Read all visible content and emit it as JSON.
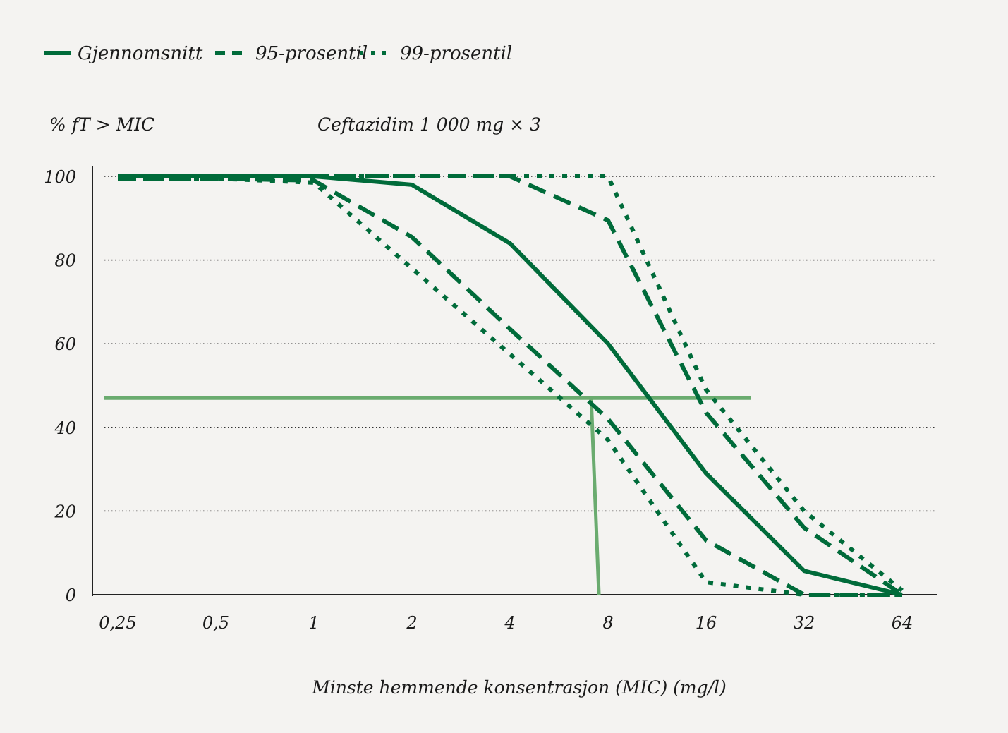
{
  "chart_data": {
    "type": "line",
    "title": "Ceftazidim 1 000 mg × 3",
    "ylabel": "% fT > MIC",
    "xlabel": "Minste hemmende konsentrasjon (MIC) (mg/l)",
    "x_scale": "log2",
    "categories": [
      "0,25",
      "0,5",
      "1",
      "2",
      "4",
      "8",
      "16",
      "32",
      "64"
    ],
    "x": [
      0.25,
      0.5,
      1,
      2,
      4,
      8,
      16,
      32,
      64
    ],
    "ylim": [
      0,
      100
    ],
    "yticks": [
      "0",
      "20",
      "40",
      "60",
      "80",
      "100"
    ],
    "grid": "horizontal dotted",
    "legend_position": "top-left",
    "colors": {
      "series": "#006b3a",
      "reference": "#6aab6f",
      "background": "#f4f3f1"
    },
    "legend": [
      {
        "name": "Gjennomsnitt",
        "style": "solid"
      },
      {
        "name": "95-prosentil",
        "style": "dashed"
      },
      {
        "name": "99-prosentil",
        "style": "dotted"
      }
    ],
    "series": [
      {
        "name": "Gjennomsnitt",
        "style": "solid",
        "values": [
          100,
          100,
          100,
          98,
          84,
          60,
          29,
          5.7,
          0
        ]
      },
      {
        "name": "95-prosentil",
        "style": "dashed",
        "values": [
          99.5,
          99.5,
          99,
          85.5,
          63.5,
          42,
          13,
          0,
          0
        ]
      },
      {
        "name": "95-prosentil",
        "style": "dashed",
        "values": [
          100,
          100,
          100,
          100,
          100,
          89.5,
          43.5,
          16,
          0
        ]
      },
      {
        "name": "99-prosentil",
        "style": "dotted",
        "values": [
          99.5,
          99.5,
          98.5,
          78,
          57.5,
          37,
          3,
          0,
          0
        ]
      },
      {
        "name": "99-prosentil",
        "style": "dotted",
        "values": [
          100,
          100,
          100,
          100,
          100,
          100,
          49,
          20,
          1
        ]
      }
    ],
    "reference_lines": [
      {
        "type": "horizontal",
        "y": 47,
        "x_from": 0.25,
        "x_to": 22
      },
      {
        "type": "vertical",
        "x_top": 7.1,
        "x_bottom": 7.5,
        "y_from": 47,
        "y_to": 0
      }
    ]
  }
}
